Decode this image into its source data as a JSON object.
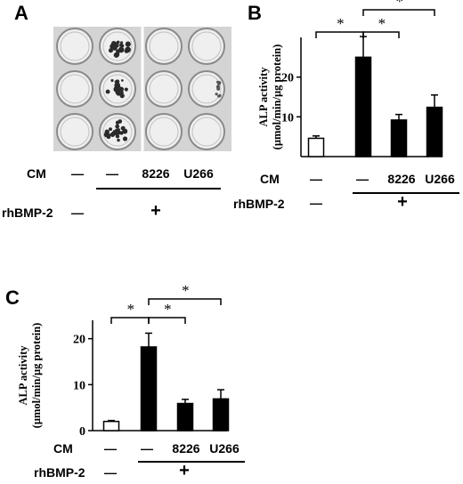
{
  "panel_a": {
    "label": "A",
    "cm_label": "CM",
    "rhbmp_label": "rhBMP-2",
    "cm_conditions": [
      "—",
      "—",
      "8226",
      "U266"
    ],
    "rhbmp_conditions": [
      "—",
      "+"
    ]
  },
  "panel_b": {
    "label": "B",
    "cm_label": "CM",
    "rhbmp_label": "rhBMP-2",
    "cm_conditions": [
      "—",
      "—",
      "8226",
      "U266"
    ],
    "rhbmp_conditions": [
      "—",
      "+"
    ],
    "star": "*"
  },
  "panel_c": {
    "label": "C",
    "cm_label": "CM",
    "rhbmp_label": "rhBMP-2",
    "cm_conditions": [
      "—",
      "—",
      "8226",
      "U266"
    ],
    "rhbmp_conditions": [
      "—",
      "+"
    ],
    "star": "*"
  },
  "chart_data": [
    {
      "panel": "B",
      "type": "bar",
      "categories": [
        "—",
        "—",
        "8226",
        "U266"
      ],
      "values": [
        4.6,
        25.0,
        9.2,
        12.4
      ],
      "errors": [
        0.6,
        5.2,
        1.4,
        3.1
      ],
      "bar_colors": [
        "#ffffff",
        "#000000",
        "#000000",
        "#000000"
      ],
      "ylabel": "ALP activity (µmol/min/µg protein)",
      "yticks": [
        10,
        20
      ],
      "ylim": [
        0,
        30
      ],
      "significance": [
        [
          0,
          1
        ],
        [
          1,
          2
        ],
        [
          1,
          3
        ]
      ],
      "grid": false
    },
    {
      "panel": "C",
      "type": "bar",
      "categories": [
        "—",
        "—",
        "8226",
        "U266"
      ],
      "values": [
        2.0,
        18.2,
        5.9,
        6.9
      ],
      "errors": [
        0.2,
        3.0,
        0.9,
        2.0
      ],
      "bar_colors": [
        "#ffffff",
        "#000000",
        "#000000",
        "#000000"
      ],
      "ylabel": "ALP activity (µmol/min/µg protein)",
      "yticks": [
        0,
        10,
        20
      ],
      "ylim": [
        0,
        24
      ],
      "significance": [
        [
          0,
          1
        ],
        [
          1,
          2
        ],
        [
          1,
          3
        ]
      ],
      "grid": false
    }
  ]
}
